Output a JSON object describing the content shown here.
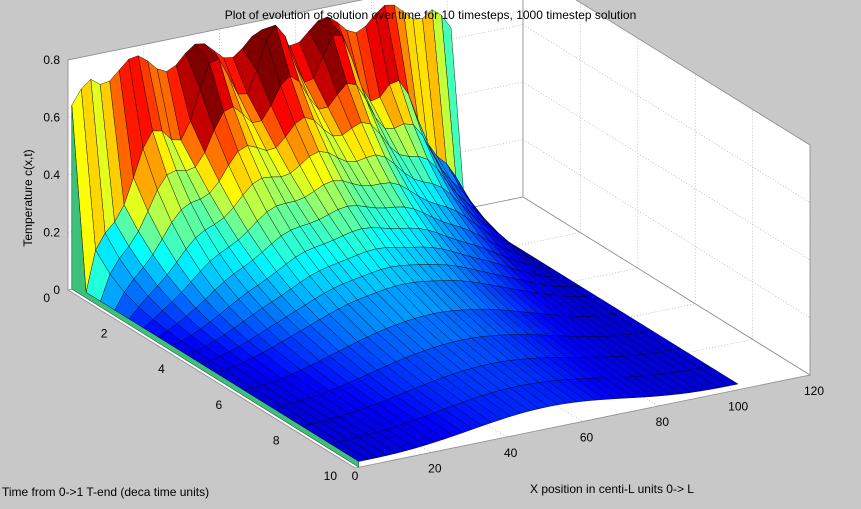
{
  "chart_data": {
    "type": "surface",
    "title": "Plot of evolution of solution over time for 10 timesteps, 1000 timestep solution",
    "xlabel": "X position in centi-L units 0-> L",
    "ylabel": "Time from 0->1 T-end (deca time units)",
    "zlabel": "Temperature c(x,t)",
    "x_ticks": [
      "20",
      "40",
      "60",
      "80",
      "100",
      "120"
    ],
    "y_ticks": [
      "0",
      "2",
      "4",
      "6",
      "8",
      "10"
    ],
    "z_ticks": [
      "0",
      "0.2",
      "0.4",
      "0.6",
      "0.8"
    ],
    "extra_tick": "0",
    "xlim": [
      0,
      120
    ],
    "ylim": [
      0,
      10
    ],
    "zlim": [
      0,
      0.8
    ],
    "x_range": [
      1,
      101
    ],
    "grid": true,
    "colormap": "jet",
    "description_values": {
      "initial_profile_peak": 0.8,
      "initial_profile_base": 0.66,
      "initial_oscillations": 6,
      "final_level": 0.03
    }
  },
  "colors": {
    "background": "#c8c8c8",
    "axes_face": "#ffffff",
    "grid": "#a0a0a0"
  }
}
